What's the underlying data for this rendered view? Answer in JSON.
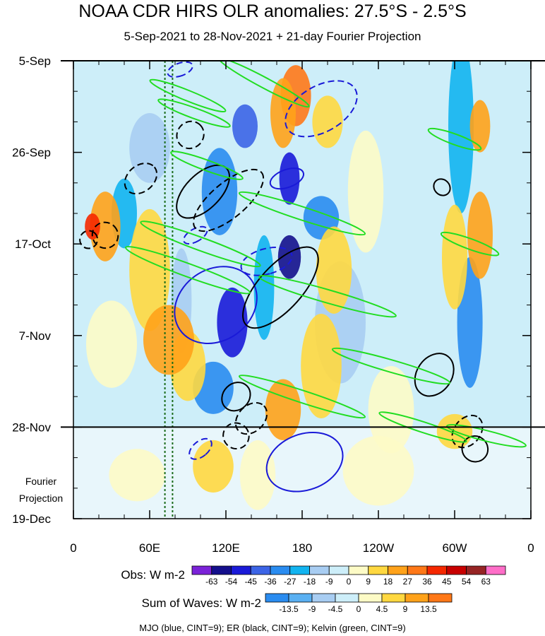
{
  "title": "NOAA CDR HIRS OLR anomalies: 27.5°S - 2.5°S",
  "subtitle": "5-Sep-2021 to 28-Nov-2021 + 21-day Fourier Projection",
  "projection_label": [
    "Fourier",
    "Projection"
  ],
  "footer": "MJO (blue, CINT=9); ER (black, CINT=9); Kelvin (green, CINT=9)",
  "colors": {
    "mjo": "#1a1ad8",
    "er": "#000000",
    "kelvin": "#22dd22",
    "meridian_lines": "#1a6b1a"
  },
  "chart_data": {
    "type": "heatmap",
    "title": "NOAA CDR HIRS OLR anomalies: 27.5°S - 2.5°S",
    "subtitle": "5-Sep-2021 to 28-Nov-2021 + 21-day Fourier Projection",
    "x_ticks": [
      {
        "lon": 0,
        "label": "0"
      },
      {
        "lon": 60,
        "label": "60E"
      },
      {
        "lon": 120,
        "label": "120E"
      },
      {
        "lon": 180,
        "label": "180"
      },
      {
        "lon": 240,
        "label": "120W"
      },
      {
        "lon": 300,
        "label": "60W"
      },
      {
        "lon": 360,
        "label": "0"
      }
    ],
    "xlim": [
      0,
      360
    ],
    "y_ticks": [
      {
        "day": 0,
        "label": "5-Sep"
      },
      {
        "day": 21,
        "label": "26-Sep"
      },
      {
        "day": 42,
        "label": "17-Oct"
      },
      {
        "day": 63,
        "label": "7-Nov"
      },
      {
        "day": 84,
        "label": "28-Nov"
      },
      {
        "day": 105,
        "label": "19-Dec"
      }
    ],
    "ylim_days": [
      0,
      105
    ],
    "observation_end_day": 84,
    "reference_longitudes": [
      72,
      78
    ],
    "obs_colorbar": {
      "label": "Obs: W m-2",
      "levels": [
        "-63",
        "-54",
        "-45",
        "-36",
        "-27",
        "-18",
        "-9",
        "0",
        "9",
        "18",
        "27",
        "36",
        "45",
        "54",
        "63"
      ],
      "colors": [
        "#7b22d8",
        "#140f8c",
        "#1a1ad8",
        "#3c64e6",
        "#2a8cf0",
        "#12b4f0",
        "#a8cdf2",
        "#cdeef9",
        "#fdfbc6",
        "#ffd840",
        "#ffa21a",
        "#ff7818",
        "#f52800",
        "#c80000",
        "#962424",
        "#ff6ec8"
      ]
    },
    "waves_colorbar": {
      "label": "Sum of Waves: W m-2",
      "levels": [
        "-13.5",
        "-9",
        "-4.5",
        "0",
        "4.5",
        "9",
        "13.5"
      ],
      "colors": [
        "#2a8cf0",
        "#5ab0f2",
        "#a8cdf2",
        "#cdeef9",
        "#fdfbc6",
        "#ffd840",
        "#ffa21a",
        "#ff7818"
      ]
    },
    "legend": "MJO (blue, CINT=9); ER (black, CINT=9); Kelvin (green, CINT=9)",
    "anomaly_patches": [
      {
        "lon": 115,
        "day": 30,
        "rlon": 14,
        "rday": 10,
        "value": -27
      },
      {
        "lon": 135,
        "day": 15,
        "rlon": 10,
        "rday": 5,
        "value": -36
      },
      {
        "lon": 170,
        "day": 45,
        "rlon": 9,
        "rday": 5,
        "value": -54
      },
      {
        "lon": 125,
        "day": 60,
        "rlon": 12,
        "rday": 8,
        "value": -45
      },
      {
        "lon": 110,
        "day": 75,
        "rlon": 16,
        "rday": 6,
        "value": -27
      },
      {
        "lon": 170,
        "day": 27,
        "rlon": 8,
        "rday": 6,
        "value": -45
      },
      {
        "lon": 195,
        "day": 36,
        "rlon": 14,
        "rday": 5,
        "value": -27
      },
      {
        "lon": 150,
        "day": 52,
        "rlon": 8,
        "rday": 12,
        "value": -18
      },
      {
        "lon": 85,
        "day": 55,
        "rlon": 8,
        "rday": 12,
        "value": -9
      },
      {
        "lon": 40,
        "day": 35,
        "rlon": 10,
        "rday": 8,
        "value": -18
      },
      {
        "lon": 305,
        "day": 15,
        "rlon": 10,
        "rday": 20,
        "value": -18
      },
      {
        "lon": 312,
        "day": 60,
        "rlon": 10,
        "rday": 15,
        "value": -27
      },
      {
        "lon": 210,
        "day": 60,
        "rlon": 20,
        "rday": 14,
        "value": -9
      },
      {
        "lon": 60,
        "day": 20,
        "rlon": 16,
        "rday": 8,
        "value": -9
      },
      {
        "lon": 175,
        "day": 8,
        "rlon": 12,
        "rday": 7,
        "value": 36
      },
      {
        "lon": 165,
        "day": 12,
        "rlon": 10,
        "rday": 8,
        "value": 27
      },
      {
        "lon": 200,
        "day": 14,
        "rlon": 12,
        "rday": 6,
        "value": 18
      },
      {
        "lon": 25,
        "day": 38,
        "rlon": 12,
        "rday": 8,
        "value": 27
      },
      {
        "lon": 15,
        "day": 38,
        "rlon": 6,
        "rday": 3,
        "value": 45
      },
      {
        "lon": 60,
        "day": 48,
        "rlon": 16,
        "rday": 14,
        "value": 18
      },
      {
        "lon": 90,
        "day": 70,
        "rlon": 14,
        "rday": 8,
        "value": 18
      },
      {
        "lon": 75,
        "day": 64,
        "rlon": 20,
        "rday": 8,
        "value": 27
      },
      {
        "lon": 205,
        "day": 48,
        "rlon": 14,
        "rday": 10,
        "value": 18
      },
      {
        "lon": 195,
        "day": 70,
        "rlon": 16,
        "rday": 12,
        "value": 18
      },
      {
        "lon": 165,
        "day": 80,
        "rlon": 14,
        "rday": 7,
        "value": 27
      },
      {
        "lon": 320,
        "day": 40,
        "rlon": 10,
        "rday": 10,
        "value": 27
      },
      {
        "lon": 300,
        "day": 45,
        "rlon": 10,
        "rday": 12,
        "value": 18
      },
      {
        "lon": 320,
        "day": 15,
        "rlon": 8,
        "rday": 6,
        "value": 27
      },
      {
        "lon": 110,
        "day": 93,
        "rlon": 16,
        "rday": 6,
        "value": 18
      },
      {
        "lon": 145,
        "day": 95,
        "rlon": 14,
        "rday": 8,
        "value": 9
      },
      {
        "lon": 230,
        "day": 30,
        "rlon": 14,
        "rday": 14,
        "value": 9
      },
      {
        "lon": 250,
        "day": 80,
        "rlon": 18,
        "rday": 10,
        "value": 9
      },
      {
        "lon": 30,
        "day": 65,
        "rlon": 20,
        "rday": 10,
        "value": 9
      },
      {
        "lon": 240,
        "day": 94,
        "rlon": 28,
        "rday": 8,
        "value": 9
      },
      {
        "lon": 50,
        "day": 95,
        "rlon": 22,
        "rday": 6,
        "value": 9
      },
      {
        "lon": 300,
        "day": 85,
        "rlon": 14,
        "rday": 4,
        "value": 18
      }
    ],
    "wave_contours": [
      {
        "wave": "MJO",
        "lon": 195,
        "day": 11,
        "rlon": 18,
        "rday": 9,
        "angle": 60,
        "dash": true
      },
      {
        "wave": "MJO",
        "lon": 112,
        "day": 56,
        "rlon": 28,
        "rday": 10,
        "angle": 55,
        "dash": false
      },
      {
        "wave": "MJO",
        "lon": 182,
        "day": 92,
        "rlon": 22,
        "rday": 9,
        "angle": 70,
        "dash": false
      },
      {
        "wave": "MJO",
        "lon": 168,
        "day": 27,
        "rlon": 7,
        "rday": 4,
        "angle": 70,
        "dash": false
      },
      {
        "wave": "MJO",
        "lon": 152,
        "day": 46,
        "rlon": 10,
        "rday": 6,
        "angle": 75,
        "dash": true
      },
      {
        "wave": "MJO",
        "lon": 96,
        "day": 40,
        "rlon": 5,
        "rday": 3,
        "angle": 60,
        "dash": true
      },
      {
        "wave": "MJO",
        "lon": 100,
        "day": 89,
        "rlon": 6,
        "rday": 3,
        "angle": 50,
        "dash": true
      },
      {
        "wave": "MJO",
        "lon": 84,
        "day": 2,
        "rlon": 5,
        "rday": 3,
        "angle": 70,
        "dash": true
      },
      {
        "wave": "ER",
        "lon": 163,
        "day": 52,
        "rlon": 40,
        "rday": 5,
        "angle": -48,
        "dash": false
      },
      {
        "wave": "ER",
        "lon": 102,
        "day": 30,
        "rlon": 26,
        "rday": 4,
        "angle": -45,
        "dash": false
      },
      {
        "wave": "ER",
        "lon": 122,
        "day": 32,
        "rlon": 34,
        "rday": 4,
        "angle": -40,
        "dash": true
      },
      {
        "wave": "ER",
        "lon": 92,
        "day": 17,
        "rlon": 11,
        "rday": 3,
        "angle": -45,
        "dash": true
      },
      {
        "wave": "ER",
        "lon": 25,
        "day": 40,
        "rlon": 10,
        "rday": 3,
        "angle": -45,
        "dash": true
      },
      {
        "wave": "ER",
        "lon": 53,
        "day": 27,
        "rlon": 14,
        "rday": 3,
        "angle": -40,
        "dash": true
      },
      {
        "wave": "ER",
        "lon": 128,
        "day": 77,
        "rlon": 12,
        "rday": 3,
        "angle": -45,
        "dash": false
      },
      {
        "wave": "ER",
        "lon": 140,
        "day": 82,
        "rlon": 14,
        "rday": 3,
        "angle": -45,
        "dash": true
      },
      {
        "wave": "ER",
        "lon": 128,
        "day": 86,
        "rlon": 10,
        "rday": 3,
        "angle": -45,
        "dash": true
      },
      {
        "wave": "ER",
        "lon": 284,
        "day": 72,
        "rlon": 18,
        "rday": 4,
        "angle": -55,
        "dash": false
      },
      {
        "wave": "ER",
        "lon": 310,
        "day": 85,
        "rlon": 14,
        "rday": 3,
        "angle": -50,
        "dash": true
      },
      {
        "wave": "ER",
        "lon": 316,
        "day": 89,
        "rlon": 10,
        "rday": 3,
        "angle": -50,
        "dash": false
      },
      {
        "wave": "ER",
        "lon": 290,
        "day": 29,
        "rlon": 6,
        "rday": 2,
        "angle": -45,
        "dash": false
      },
      {
        "wave": "ER",
        "lon": 12,
        "day": 41,
        "rlon": 7,
        "rday": 2,
        "angle": -50,
        "dash": true
      },
      {
        "wave": "KELVIN",
        "lon": 150,
        "day": 5,
        "rlon": 40,
        "rday": 1.2,
        "angle": 28,
        "dash": false
      },
      {
        "wave": "KELVIN",
        "lon": 90,
        "day": 8,
        "rlon": 32,
        "rday": 1.2,
        "angle": 22,
        "dash": false
      },
      {
        "wave": "KELVIN",
        "lon": 95,
        "day": 12,
        "rlon": 30,
        "rday": 1.2,
        "angle": 20,
        "dash": false
      },
      {
        "wave": "KELVIN",
        "lon": 105,
        "day": 24,
        "rlon": 30,
        "rday": 1.2,
        "angle": 20,
        "dash": false
      },
      {
        "wave": "KELVIN",
        "lon": 180,
        "day": 35,
        "rlon": 52,
        "rday": 1.5,
        "angle": 18,
        "dash": false
      },
      {
        "wave": "KELVIN",
        "lon": 100,
        "day": 42,
        "rlon": 50,
        "rday": 1.5,
        "angle": 20,
        "dash": false
      },
      {
        "wave": "KELVIN",
        "lon": 90,
        "day": 48,
        "rlon": 52,
        "rday": 1.5,
        "angle": 20,
        "dash": false
      },
      {
        "wave": "KELVIN",
        "lon": 200,
        "day": 54,
        "rlon": 56,
        "rday": 1.5,
        "angle": 16,
        "dash": false
      },
      {
        "wave": "KELVIN",
        "lon": 250,
        "day": 70,
        "rlon": 48,
        "rday": 1.4,
        "angle": 16,
        "dash": false
      },
      {
        "wave": "KELVIN",
        "lon": 180,
        "day": 77,
        "rlon": 52,
        "rday": 1.4,
        "angle": 18,
        "dash": false
      },
      {
        "wave": "KELVIN",
        "lon": 275,
        "day": 84,
        "rlon": 36,
        "rday": 1.2,
        "angle": 18,
        "dash": false
      },
      {
        "wave": "KELVIN",
        "lon": 325,
        "day": 86,
        "rlon": 32,
        "rday": 1.2,
        "angle": 14,
        "dash": false
      },
      {
        "wave": "KELVIN",
        "lon": 312,
        "day": 42,
        "rlon": 24,
        "rday": 1.2,
        "angle": 20,
        "dash": false
      },
      {
        "wave": "KELVIN",
        "lon": 300,
        "day": 18,
        "rlon": 22,
        "rday": 1.2,
        "angle": 20,
        "dash": false
      }
    ]
  }
}
